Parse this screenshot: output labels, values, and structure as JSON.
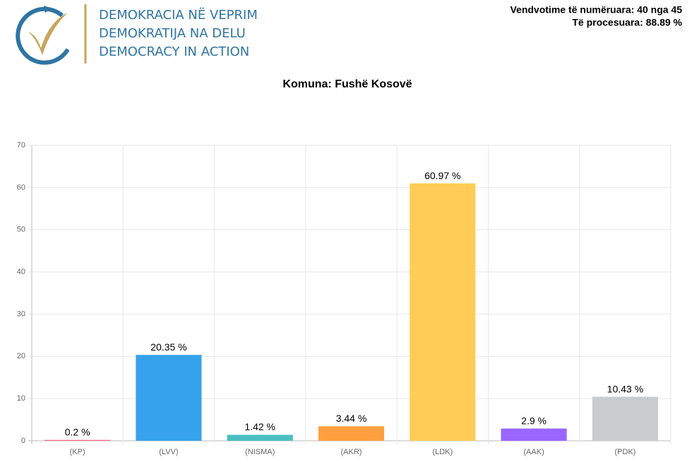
{
  "header": {
    "logo_lines": [
      "DEMOKRACIA NË VEPRIM",
      "DEMOKRATIJA NA DELU",
      "DEMOCRACY IN ACTION"
    ],
    "stats": [
      "Vendvotime të numëruara: 40 nga 45",
      "Të procesuara: 88.89 %"
    ]
  },
  "chart_data": {
    "type": "bar",
    "title": "Komuna: Fushë Kosovë",
    "categories": [
      "(KP)",
      "(LVV)",
      "(NISMA)",
      "(AKR)",
      "(LDK)",
      "(AAK)",
      "(PDK)"
    ],
    "values": [
      0.2,
      20.35,
      1.42,
      3.44,
      60.97,
      2.9,
      10.43
    ],
    "value_labels": [
      "0.2 %",
      "20.35 %",
      "1.42 %",
      "3.44 %",
      "60.97 %",
      "2.9 %",
      "10.43 %"
    ],
    "colors": [
      "#ff6384",
      "#36a2eb",
      "#4bc0c0",
      "#ff9f40",
      "#ffcd56",
      "#9966ff",
      "#c9cbcf"
    ],
    "ylim": [
      0,
      70
    ],
    "yticks": [
      0,
      10,
      20,
      30,
      40,
      50,
      60,
      70
    ],
    "grid": true
  }
}
